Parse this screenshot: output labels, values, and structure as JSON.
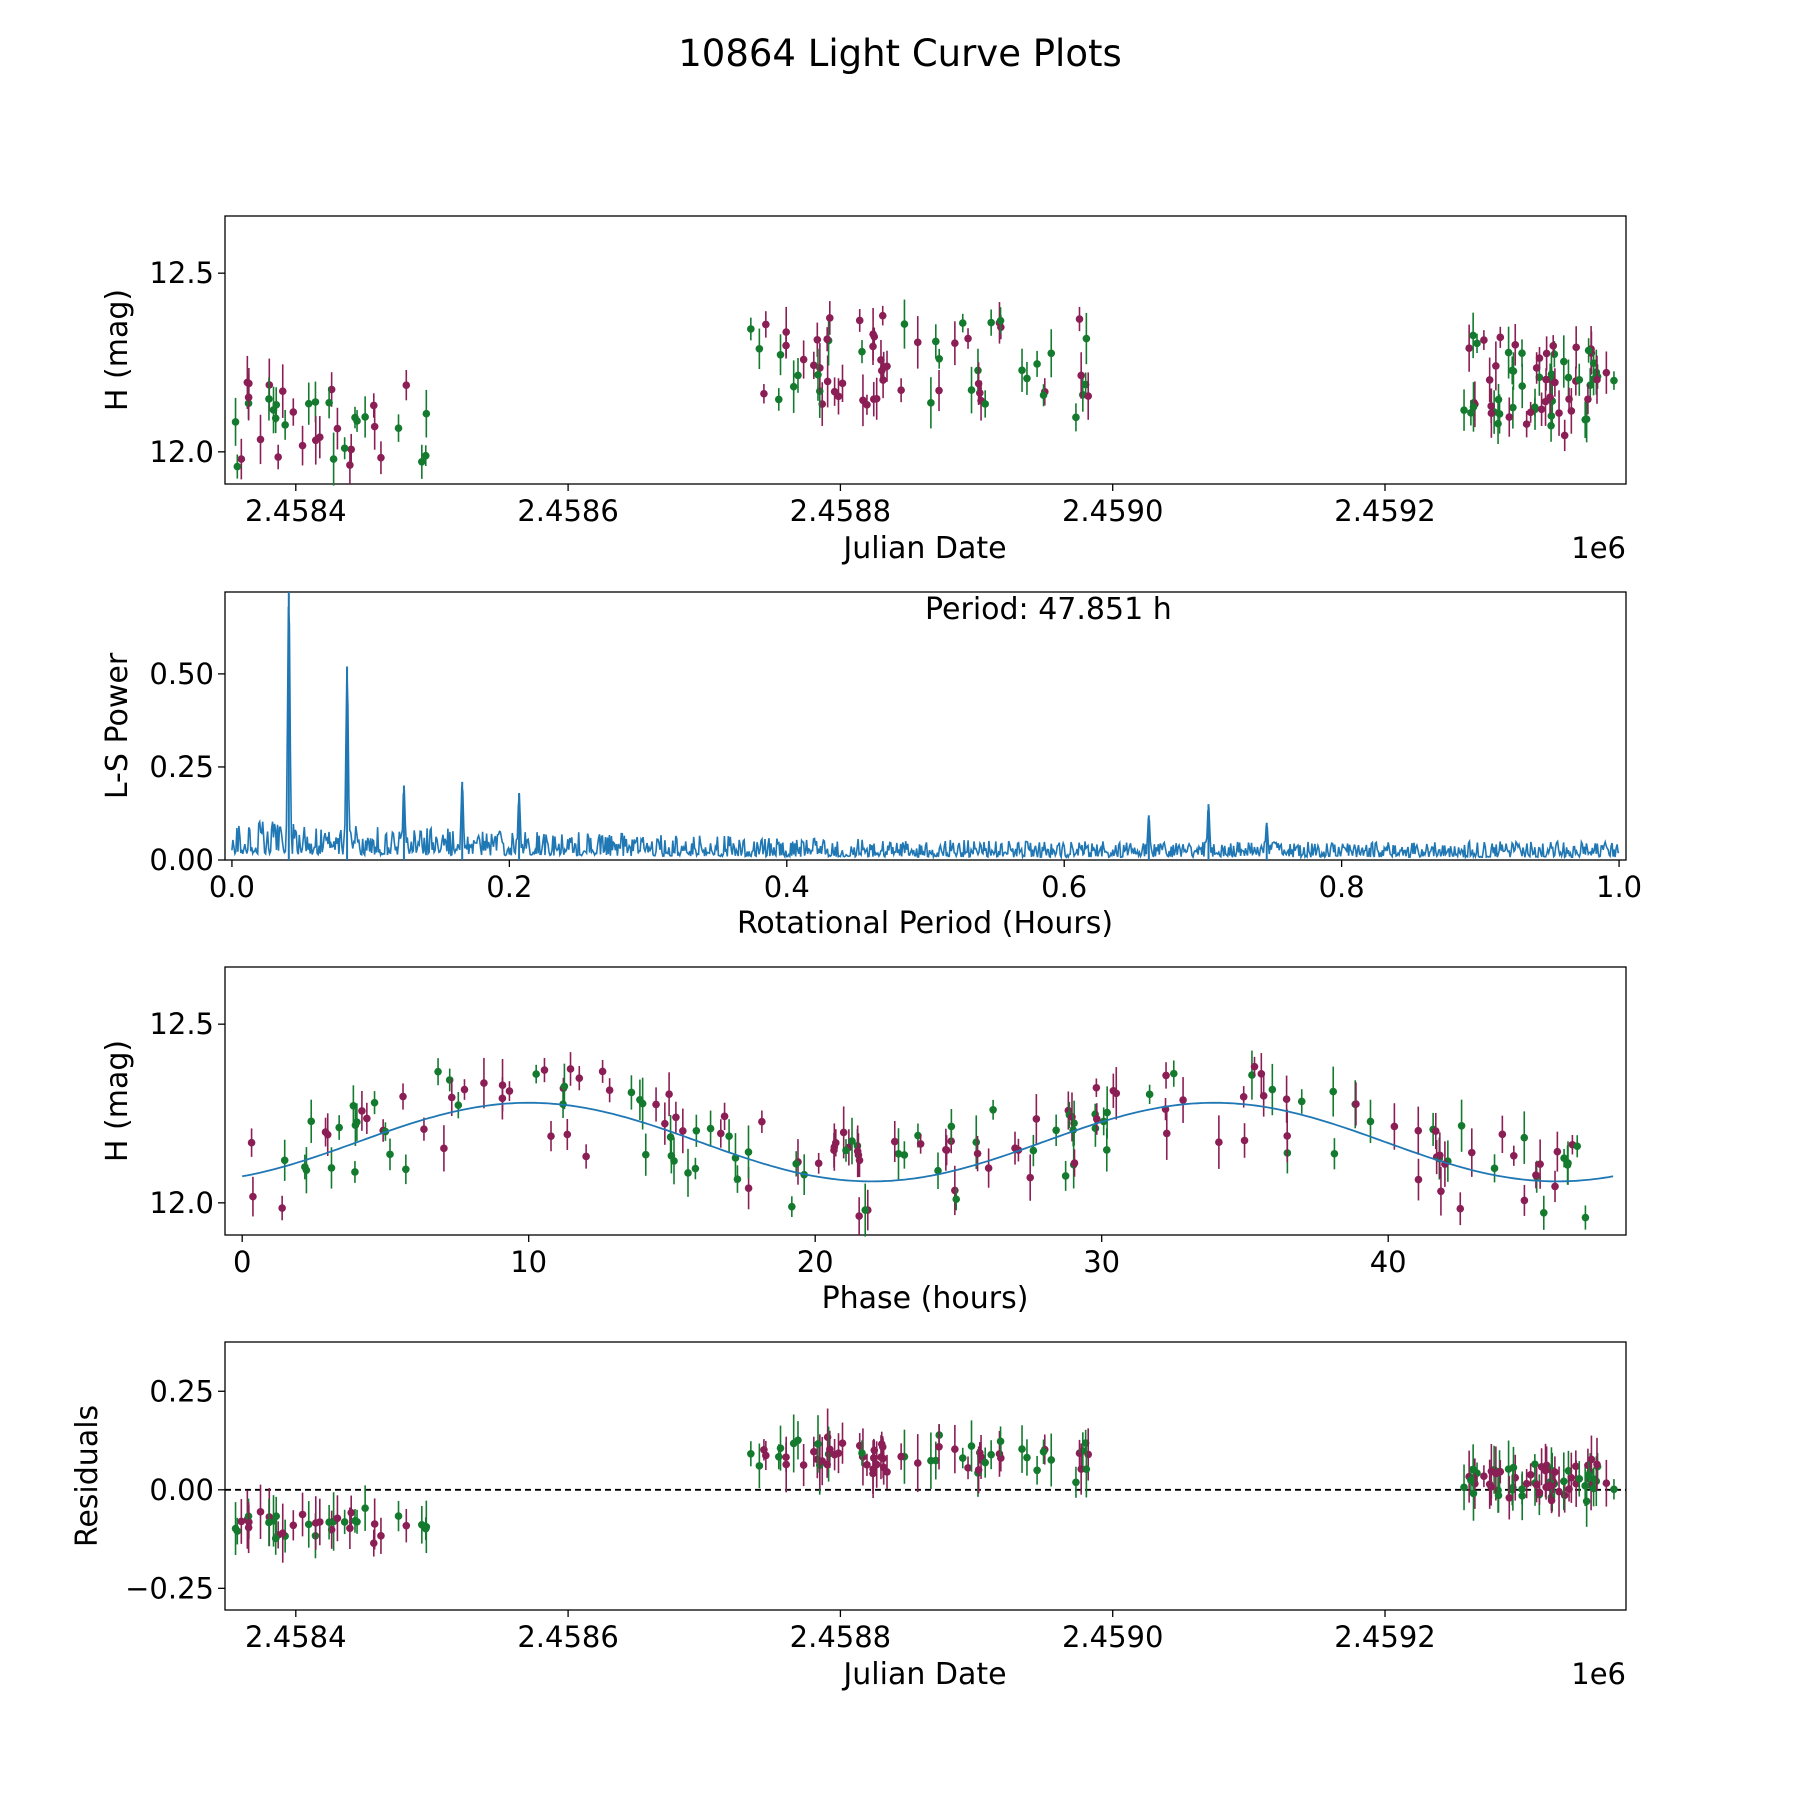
{
  "title": "10864 Light Curve Plots",
  "colors": {
    "green": "#137a2e",
    "maroon": "#8a1e55",
    "blue": "#1f77b4"
  },
  "chart_data": [
    {
      "id": "lightcurve",
      "type": "scatter",
      "title": "",
      "xlabel": "Julian Date",
      "ylabel": "H (mag)",
      "offset_text": "1e6",
      "xlim": [
        2458348,
        2459377
      ],
      "ylim": [
        11.91,
        12.66
      ],
      "xticks": [
        2458400,
        2458600,
        2458800,
        2459000,
        2459200
      ],
      "xtick_labels": [
        "2.4584",
        "2.4586",
        "2.4588",
        "2.4590",
        "2.4592"
      ],
      "yticks": [
        12.0,
        12.5
      ],
      "ytick_labels": [
        "12.0",
        "12.5"
      ],
      "note": "Three observing seasons; points in two filters (green, maroon) with vertical error bars"
    },
    {
      "id": "periodogram",
      "type": "line",
      "xlabel": "Rotational Period (Hours)",
      "ylabel": "L-S Power",
      "annotation": "Period: 47.851 h",
      "xlim": [
        -0.005,
        1.005
      ],
      "ylim": [
        0,
        0.72
      ],
      "xticks": [
        0.0,
        0.2,
        0.4,
        0.6,
        0.8,
        1.0
      ],
      "xtick_labels": [
        "0.0",
        "0.2",
        "0.4",
        "0.6",
        "0.8",
        "1.0"
      ],
      "yticks": [
        0.0,
        0.25,
        0.5
      ],
      "ytick_labels": [
        "0.00",
        "0.25",
        "0.50"
      ],
      "peaks": [
        {
          "x": 0.041,
          "y": 0.72
        },
        {
          "x": 0.083,
          "y": 0.52
        },
        {
          "x": 0.124,
          "y": 0.2
        },
        {
          "x": 0.166,
          "y": 0.21
        },
        {
          "x": 0.207,
          "y": 0.18
        },
        {
          "x": 0.661,
          "y": 0.12
        },
        {
          "x": 0.704,
          "y": 0.15
        },
        {
          "x": 0.746,
          "y": 0.1
        }
      ],
      "noise_envelope": [
        [
          0.0,
          0.11
        ],
        [
          0.1,
          0.09
        ],
        [
          0.2,
          0.08
        ],
        [
          0.4,
          0.06
        ],
        [
          0.6,
          0.05
        ],
        [
          1.0,
          0.05
        ]
      ]
    },
    {
      "id": "phased",
      "type": "scatter",
      "xlabel": "Phase (hours)",
      "ylabel": "H (mag)",
      "xlim": [
        -0.6,
        48.3
      ],
      "ylim": [
        11.91,
        12.66
      ],
      "xticks": [
        0,
        10,
        20,
        30,
        40
      ],
      "xtick_labels": [
        "0",
        "10",
        "20",
        "30",
        "40"
      ],
      "yticks": [
        12.0,
        12.5
      ],
      "ytick_labels": [
        "12.0",
        "12.5"
      ],
      "model": {
        "mean": 12.17,
        "amplitude": 0.11,
        "period": 23.9255,
        "peak_phase": 10.0
      }
    },
    {
      "id": "residuals",
      "type": "scatter",
      "xlabel": "Julian Date",
      "ylabel": "Residuals",
      "offset_text": "1e6",
      "xlim": [
        2458348,
        2459377
      ],
      "ylim": [
        -0.305,
        0.375
      ],
      "xticks": [
        2458400,
        2458600,
        2458800,
        2459000,
        2459200
      ],
      "xtick_labels": [
        "2.4584",
        "2.4586",
        "2.4588",
        "2.4590",
        "2.4592"
      ],
      "yticks": [
        -0.25,
        0.0,
        0.25
      ],
      "ytick_labels": [
        "−0.25",
        "0.00",
        "0.25"
      ],
      "reference_line": 0.0
    }
  ]
}
